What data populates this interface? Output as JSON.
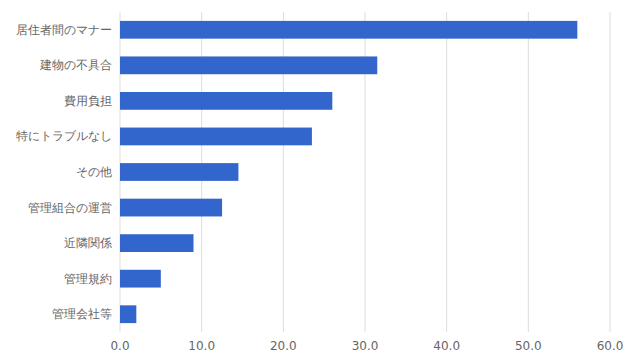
{
  "chart_data": {
    "type": "bar",
    "orientation": "horizontal",
    "categories": [
      "管理会社等",
      "管理規約",
      "近隣関係",
      "管理組合の運営",
      "その他",
      "特にトラブルなし",
      "費用負担",
      "建物の不具合",
      "居住者間のマナー"
    ],
    "values": [
      2.0,
      5.0,
      9.0,
      12.5,
      14.5,
      23.5,
      26.0,
      31.5,
      56.0
    ],
    "color": "#3366CC",
    "xlim": [
      0,
      60
    ],
    "xticks": [
      {
        "value": 0,
        "label": "0.0"
      },
      {
        "value": 10,
        "label": "10.0"
      },
      {
        "value": 20,
        "label": "20.0"
      },
      {
        "value": 30,
        "label": "30.0"
      },
      {
        "value": 40,
        "label": "40.0"
      },
      {
        "value": 50,
        "label": "50.0"
      },
      {
        "value": 60,
        "label": "60.0"
      }
    ],
    "grid": true
  }
}
